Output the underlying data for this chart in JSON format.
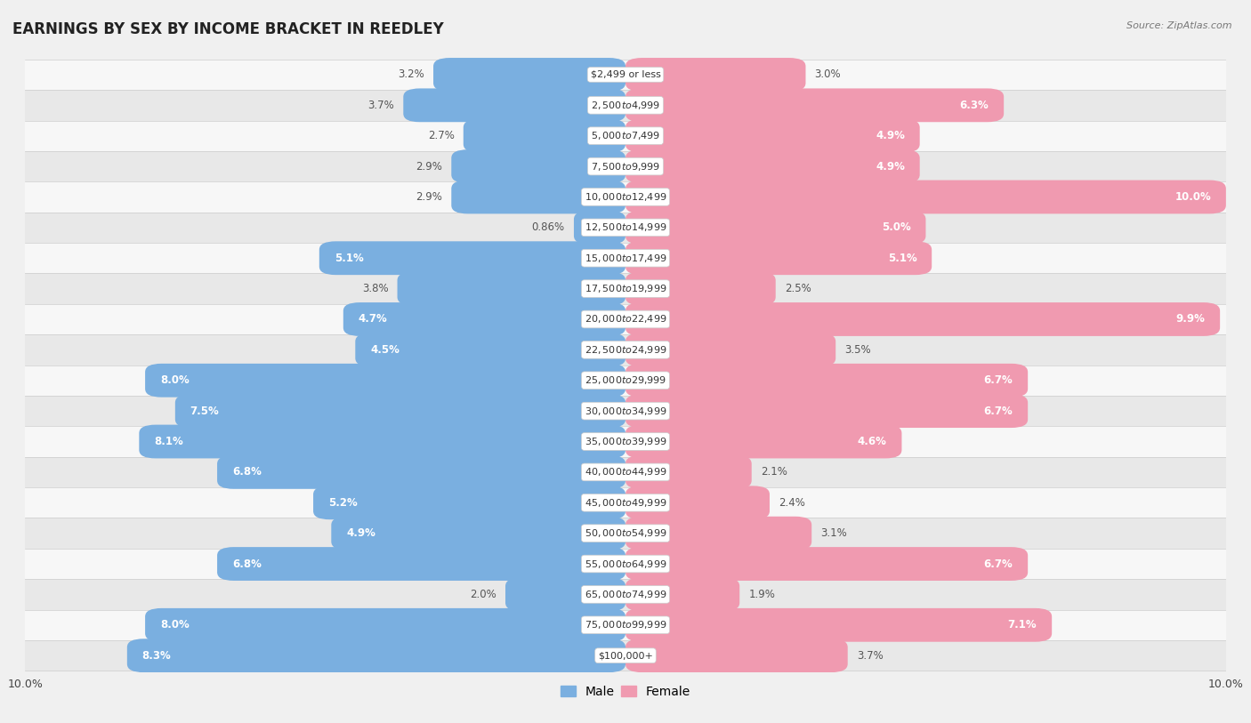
{
  "title": "EARNINGS BY SEX BY INCOME BRACKET IN REEDLEY",
  "source": "Source: ZipAtlas.com",
  "categories": [
    "$2,499 or less",
    "$2,500 to $4,999",
    "$5,000 to $7,499",
    "$7,500 to $9,999",
    "$10,000 to $12,499",
    "$12,500 to $14,999",
    "$15,000 to $17,499",
    "$17,500 to $19,999",
    "$20,000 to $22,499",
    "$22,500 to $24,999",
    "$25,000 to $29,999",
    "$30,000 to $34,999",
    "$35,000 to $39,999",
    "$40,000 to $44,999",
    "$45,000 to $49,999",
    "$50,000 to $54,999",
    "$55,000 to $64,999",
    "$65,000 to $74,999",
    "$75,000 to $99,999",
    "$100,000+"
  ],
  "male_values": [
    3.2,
    3.7,
    2.7,
    2.9,
    2.9,
    0.86,
    5.1,
    3.8,
    4.7,
    4.5,
    8.0,
    7.5,
    8.1,
    6.8,
    5.2,
    4.9,
    6.8,
    2.0,
    8.0,
    8.3
  ],
  "female_values": [
    3.0,
    6.3,
    4.9,
    4.9,
    10.0,
    5.0,
    5.1,
    2.5,
    9.9,
    3.5,
    6.7,
    6.7,
    4.6,
    2.1,
    2.4,
    3.1,
    6.7,
    1.9,
    7.1,
    3.7
  ],
  "male_color": "#7aafe0",
  "female_color": "#f09ab0",
  "male_label": "Male",
  "female_label": "Female",
  "xlim": 10.0,
  "row_colors": [
    "#f7f7f7",
    "#e8e8e8"
  ],
  "title_fontsize": 12,
  "label_fontsize": 8.5,
  "bar_height": 0.55,
  "inside_label_threshold": 4.5
}
